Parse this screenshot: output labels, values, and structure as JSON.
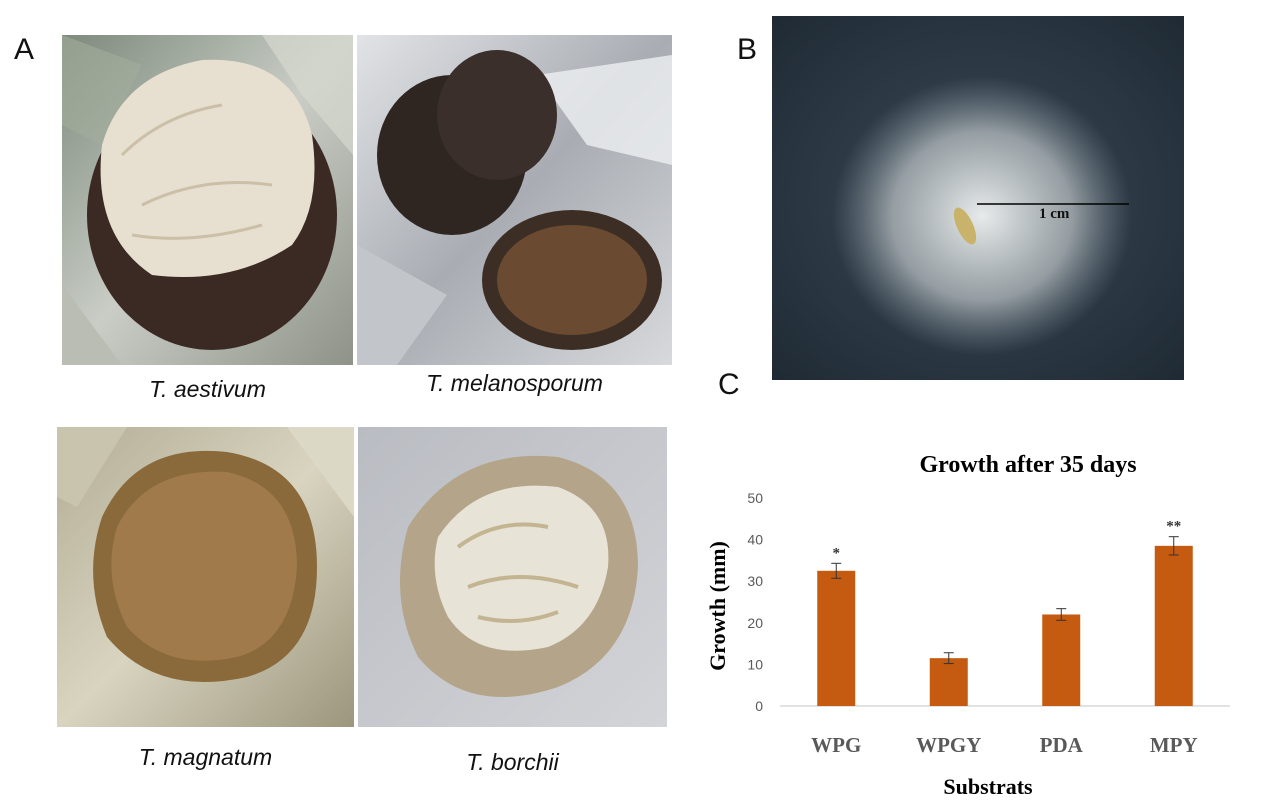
{
  "panels": {
    "a": {
      "letter": "A"
    },
    "b": {
      "letter": "B",
      "scale_bar_label": "1 cm"
    },
    "c": {
      "letter": "C"
    }
  },
  "photos": [
    {
      "caption": "T. aestivum"
    },
    {
      "caption": "T. melanosporum"
    },
    {
      "caption": "T. magnatum"
    },
    {
      "caption": "T. borchii"
    }
  ],
  "colors": {
    "bar": "#C55A11",
    "axis_text": "#595959",
    "gridline": "#D9D9D9"
  },
  "chart_data": {
    "type": "bar",
    "title": "Growth after 35 days",
    "xlabel": "Substrats",
    "ylabel": "Growth (mm)",
    "categories": [
      "WPG",
      "WPGY",
      "PDA",
      "MPY"
    ],
    "values": [
      32.5,
      11.5,
      22,
      38.5
    ],
    "errors": [
      1.8,
      1.3,
      1.4,
      2.2
    ],
    "significance": [
      "*",
      "",
      "",
      "**"
    ],
    "ylim": [
      0,
      50
    ],
    "yticks": [
      0,
      10,
      20,
      30,
      40,
      50
    ],
    "grid": false
  }
}
